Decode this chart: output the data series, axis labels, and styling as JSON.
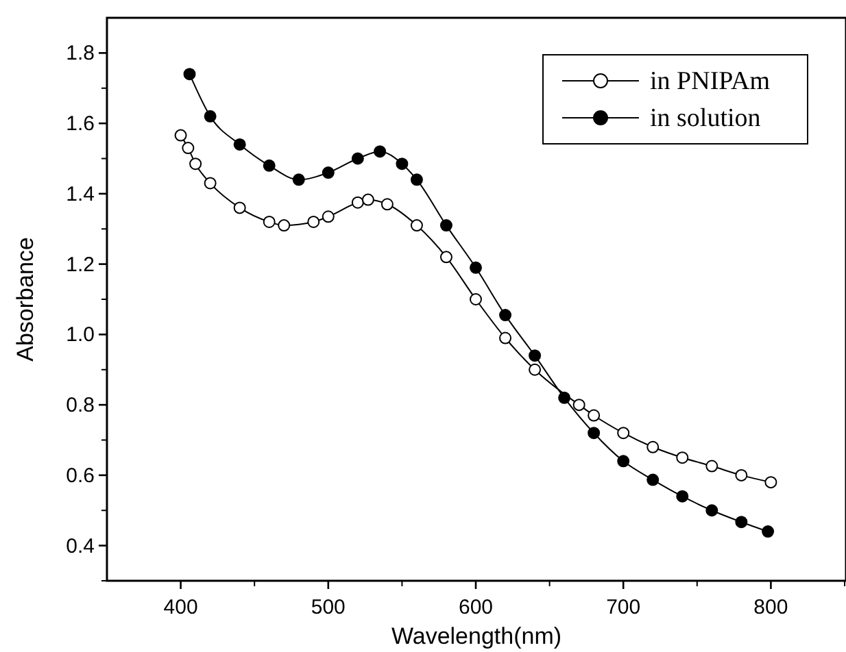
{
  "chart_data": {
    "type": "line",
    "xlabel": "Wavelength(nm)",
    "ylabel": "Absorbance",
    "xlim": [
      350,
      850
    ],
    "ylim": [
      0.3,
      1.9
    ],
    "xticks": [
      400,
      500,
      600,
      700,
      800
    ],
    "yticks": [
      0.4,
      0.6,
      0.8,
      {
        "value": 1.0,
        "label": "1.0"
      },
      1.2,
      1.4,
      1.6,
      1.8
    ],
    "marker": "circle",
    "line_style": "solid",
    "legend": "top right",
    "grid": false,
    "series": [
      {
        "name": "in PNIPAm",
        "color": "#000000",
        "x": [
          400,
          405,
          410,
          420,
          440,
          460,
          470,
          490,
          500,
          520,
          527,
          540,
          560,
          580,
          600,
          620,
          640,
          670,
          680,
          700,
          720,
          740,
          760,
          780,
          800
        ],
        "values": [
          1.566,
          1.53,
          1.485,
          1.43,
          1.36,
          1.32,
          1.31,
          1.32,
          1.335,
          1.375,
          1.383,
          1.37,
          1.31,
          1.22,
          1.1,
          0.99,
          0.9,
          0.8,
          0.77,
          0.72,
          0.68,
          0.65,
          0.626,
          0.6,
          0.58
        ]
      },
      {
        "name": "in solution",
        "color": "#000000",
        "x": [
          406,
          420,
          440,
          460,
          480,
          500,
          520,
          535,
          550,
          560,
          580,
          600,
          620,
          640,
          660,
          680,
          700,
          720,
          740,
          760,
          780,
          798
        ],
        "values": [
          1.74,
          1.62,
          1.54,
          1.48,
          1.44,
          1.46,
          1.5,
          1.52,
          1.485,
          1.44,
          1.31,
          1.19,
          1.055,
          0.94,
          0.82,
          0.72,
          0.64,
          0.587,
          0.54,
          0.5,
          0.467,
          0.44
        ]
      }
    ]
  }
}
